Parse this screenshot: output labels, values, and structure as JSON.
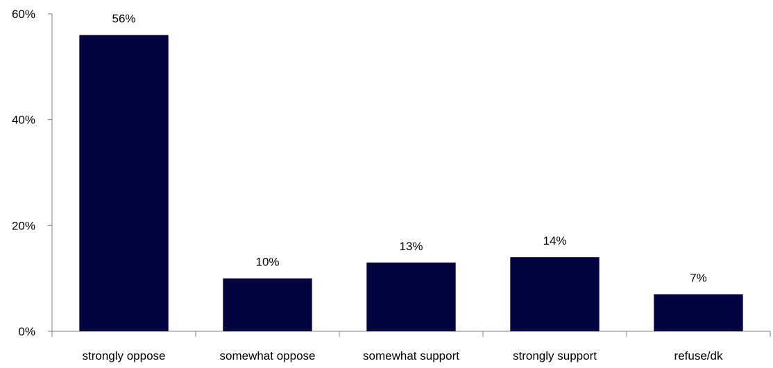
{
  "chart_data": {
    "type": "bar",
    "categories": [
      "strongly oppose",
      "somewhat oppose",
      "somewhat support",
      "strongly support",
      "refuse/dk"
    ],
    "values": [
      56,
      10,
      13,
      14,
      7
    ],
    "data_labels": [
      "56%",
      "10%",
      "13%",
      "14%",
      "7%"
    ],
    "title": "",
    "xlabel": "",
    "ylabel": "",
    "ylim": [
      0,
      60
    ],
    "yticks": [
      0,
      20,
      40,
      60
    ],
    "ytick_labels": [
      "0%",
      "20%",
      "40%",
      "60%"
    ],
    "grid": false,
    "legend": "none",
    "bar_color": "#03033f"
  }
}
